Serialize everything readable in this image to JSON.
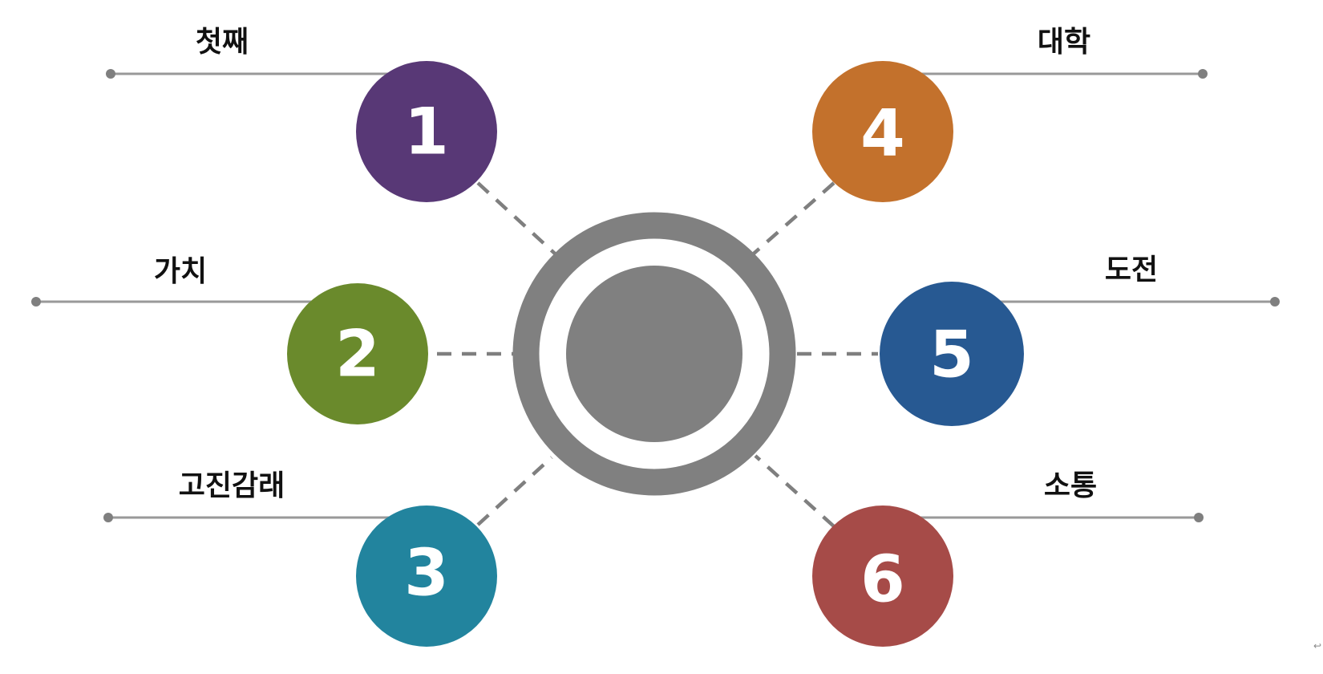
{
  "items": [
    {
      "number": "1",
      "label": "첫째",
      "color": "#583876"
    },
    {
      "number": "2",
      "label": "가치",
      "color": "#6a8a2c"
    },
    {
      "number": "3",
      "label": "고진감래",
      "color": "#22849e"
    },
    {
      "number": "4",
      "label": "대학",
      "color": "#c3712c"
    },
    {
      "number": "5",
      "label": "도전",
      "color": "#275992"
    },
    {
      "number": "6",
      "label": "소통",
      "color": "#a64b48"
    }
  ],
  "hub": {
    "ring_color": "#808080",
    "core_color": "#808080"
  },
  "connector_color": "#7f7f7f",
  "leader_color": "#999999"
}
